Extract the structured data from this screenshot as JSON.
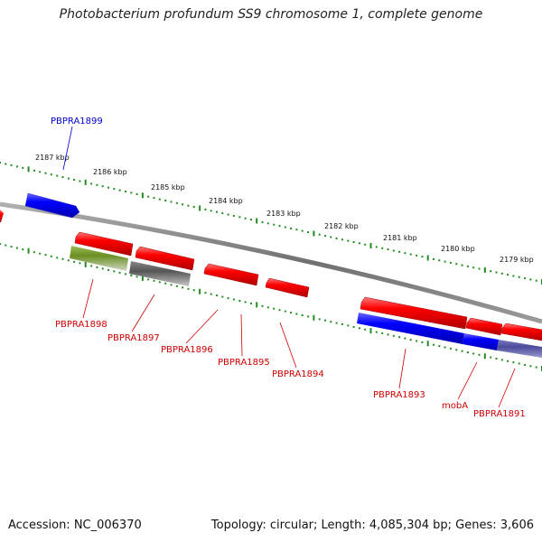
{
  "title": "Photobacterium profundum SS9 chromosome 1, complete genome",
  "footer": {
    "accession": "Accession: NC_006370",
    "summary": "Topology: circular; Length: 4,085,304 bp; Genes: 3,606"
  },
  "colors": {
    "forward_cds": "#0000ff",
    "reverse_cds": "#ff0000",
    "cog_green": "#6b8e23",
    "cog_gray": "#555555",
    "cog_slate": "#4b4b9a",
    "backbone": "#808080",
    "ticks": "#228b22"
  },
  "kbp_labels": [
    {
      "id": "kbp-2187",
      "text": "2187 kbp"
    },
    {
      "id": "kbp-2186",
      "text": "2186 kbp"
    },
    {
      "id": "kbp-2185",
      "text": "2185 kbp"
    },
    {
      "id": "kbp-2184",
      "text": "2184 kbp"
    },
    {
      "id": "kbp-2183",
      "text": "2183 kbp"
    },
    {
      "id": "kbp-2182",
      "text": "2182 kbp"
    },
    {
      "id": "kbp-2181",
      "text": "2181 kbp"
    },
    {
      "id": "kbp-2180",
      "text": "2180 kbp"
    },
    {
      "id": "kbp-2179",
      "text": "2179 kbp"
    }
  ],
  "genes": [
    {
      "id": "PBPRA1899",
      "label": "PBPRA1899",
      "strand": "forward",
      "color": "#0000cc"
    },
    {
      "id": "PBPRA1898",
      "label": "PBPRA1898",
      "strand": "reverse",
      "color": "#cc0000"
    },
    {
      "id": "PBPRA1897",
      "label": "PBPRA1897",
      "strand": "reverse",
      "color": "#cc0000"
    },
    {
      "id": "PBPRA1896",
      "label": "PBPRA1896",
      "strand": "reverse",
      "color": "#cc0000"
    },
    {
      "id": "PBPRA1895",
      "label": "PBPRA1895",
      "strand": "reverse",
      "color": "#cc0000"
    },
    {
      "id": "PBPRA1894",
      "label": "PBPRA1894",
      "strand": "reverse",
      "color": "#cc0000"
    },
    {
      "id": "PBPRA1893",
      "label": "PBPRA1893",
      "strand": "reverse",
      "color": "#cc0000"
    },
    {
      "id": "mobA",
      "label": "mobA",
      "strand": "reverse",
      "color": "#cc0000"
    },
    {
      "id": "PBPRA1891",
      "label": "PBPRA1891",
      "strand": "reverse",
      "color": "#cc0000"
    }
  ]
}
